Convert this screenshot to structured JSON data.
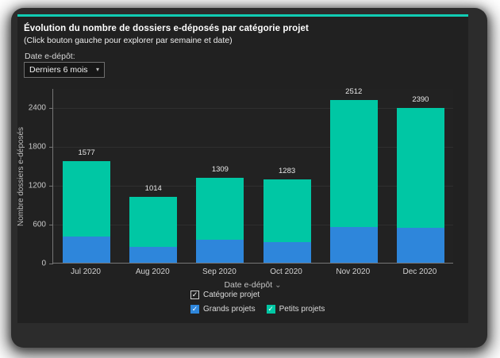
{
  "header": {
    "title": "Évolution du nombre de dossiers e-déposés par catégorie projet",
    "subtitle": "(Click bouton gauche pour explorer par semaine et date)"
  },
  "filter": {
    "label": "Date e-dépôt:",
    "value": "Derniers 6 mois"
  },
  "chart_data": {
    "type": "bar",
    "stacked": true,
    "title": "Évolution du nombre de dossiers e-déposés par catégorie projet",
    "xlabel": "Date e-dépôt",
    "ylabel": "Nombre dossiers e-déposés",
    "categories": [
      "Jul 2020",
      "Aug 2020",
      "Sep 2020",
      "Oct 2020",
      "Nov 2020",
      "Dec 2020"
    ],
    "series": [
      {
        "name": "Grands projets",
        "color": "#2E86DB",
        "values": [
          410,
          240,
          350,
          320,
          555,
          540
        ]
      },
      {
        "name": "Petits projets",
        "color": "#00C7A4",
        "values": [
          1167,
          774,
          959,
          963,
          1957,
          1850
        ]
      }
    ],
    "totals": [
      1577,
      1014,
      1309,
      1283,
      2512,
      2390
    ],
    "total_labels": [
      "1577",
      "1014",
      "1309",
      "1283",
      "2512",
      "2390"
    ],
    "yticks": [
      0,
      600,
      1200,
      1800,
      2400
    ],
    "ylim": [
      0,
      2700
    ],
    "grid": true,
    "legend_position": "bottom"
  },
  "legend": {
    "group_label": "Catégorie projet",
    "items": [
      {
        "label": "Grands projets",
        "color": "#2E86DB",
        "checked": true
      },
      {
        "label": "Petits projets",
        "color": "#00C7A4",
        "checked": true
      }
    ]
  },
  "colors": {
    "accent_teal": "#11CDB4",
    "bar_blue": "#2E86DB",
    "bar_teal": "#00C7A4",
    "window_bg": "#2c2c2c",
    "panel_bg": "#212121"
  },
  "icons": {
    "dropdown_arrow": "▾",
    "chevron_down": "⌄",
    "checkmark": "✓"
  }
}
